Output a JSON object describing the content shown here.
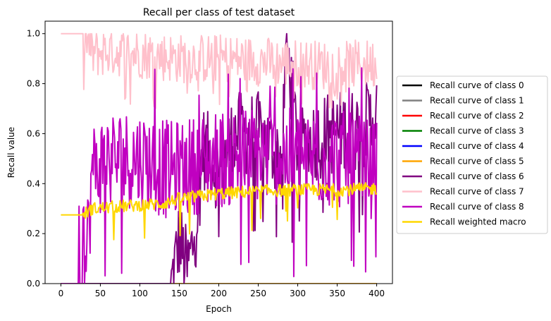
{
  "chart_data": {
    "type": "line",
    "title": "Recall per class of test dataset",
    "xlabel": "Epoch",
    "ylabel": "Recall value",
    "xlim": [
      -20,
      420
    ],
    "ylim": [
      0.0,
      1.05
    ],
    "xticks": [
      0,
      50,
      100,
      150,
      200,
      250,
      300,
      350,
      400
    ],
    "yticks": [
      0.0,
      0.2,
      0.4,
      0.6,
      0.8,
      1.0
    ],
    "grid": false,
    "legend_position": "right, outside plot",
    "series": [
      {
        "name": "Recall curve of class 0",
        "color": "#000000",
        "pattern": "flat",
        "base": 0.0
      },
      {
        "name": "Recall curve of class 1",
        "color": "#808080",
        "pattern": "flat",
        "base": 0.0
      },
      {
        "name": "Recall curve of class 2",
        "color": "#ff0000",
        "pattern": "flat",
        "base": 0.0
      },
      {
        "name": "Recall curve of class 3",
        "color": "#008000",
        "pattern": "flat",
        "base": 0.0
      },
      {
        "name": "Recall curve of class 4",
        "color": "#0000ff",
        "pattern": "flat",
        "base": 0.0
      },
      {
        "name": "Recall curve of class 5",
        "color": "#ffa500",
        "pattern": "flat",
        "base": 0.0
      },
      {
        "name": "Recall curve of class 6",
        "color": "#800080",
        "pattern": "noisy",
        "zero_until": 140,
        "points": [
          [
            140,
            0.0
          ],
          [
            150,
            0.18
          ],
          [
            160,
            0.05
          ],
          [
            170,
            0.2
          ],
          [
            180,
            0.55
          ],
          [
            200,
            0.45
          ],
          [
            220,
            0.6
          ],
          [
            250,
            0.6
          ],
          [
            280,
            0.5
          ],
          [
            285,
            0.99
          ],
          [
            300,
            0.55
          ],
          [
            340,
            0.6
          ],
          [
            380,
            0.62
          ],
          [
            400,
            0.68
          ]
        ],
        "amp": 0.17
      },
      {
        "name": "Recall curve of class 7",
        "color": "#ffc0cb",
        "pattern": "noisy",
        "zero_until": 0,
        "points": [
          [
            0,
            1.0
          ],
          [
            28,
            1.0
          ],
          [
            40,
            0.92
          ],
          [
            60,
            0.93
          ],
          [
            100,
            0.92
          ],
          [
            150,
            0.9
          ],
          [
            200,
            0.9
          ],
          [
            250,
            0.89
          ],
          [
            300,
            0.88
          ],
          [
            350,
            0.87
          ],
          [
            400,
            0.88
          ]
        ],
        "amp": 0.1
      },
      {
        "name": "Recall curve of class 8",
        "color": "#c000c0",
        "pattern": "noisy",
        "zero_until": 30,
        "points": [
          [
            30,
            0.0
          ],
          [
            40,
            0.45
          ],
          [
            60,
            0.5
          ],
          [
            100,
            0.5
          ],
          [
            140,
            0.45
          ],
          [
            200,
            0.5
          ],
          [
            250,
            0.52
          ],
          [
            300,
            0.5
          ],
          [
            350,
            0.5
          ],
          [
            400,
            0.45
          ]
        ],
        "amp": 0.2
      },
      {
        "name": "Recall weighted macro",
        "color": "#ffd700",
        "pattern": "noisy",
        "zero_until": 0,
        "points": [
          [
            0,
            0.275
          ],
          [
            28,
            0.275
          ],
          [
            40,
            0.3
          ],
          [
            80,
            0.31
          ],
          [
            130,
            0.32
          ],
          [
            150,
            0.34
          ],
          [
            200,
            0.36
          ],
          [
            250,
            0.37
          ],
          [
            300,
            0.375
          ],
          [
            350,
            0.375
          ],
          [
            400,
            0.38
          ]
        ],
        "amp": 0.025
      }
    ]
  }
}
